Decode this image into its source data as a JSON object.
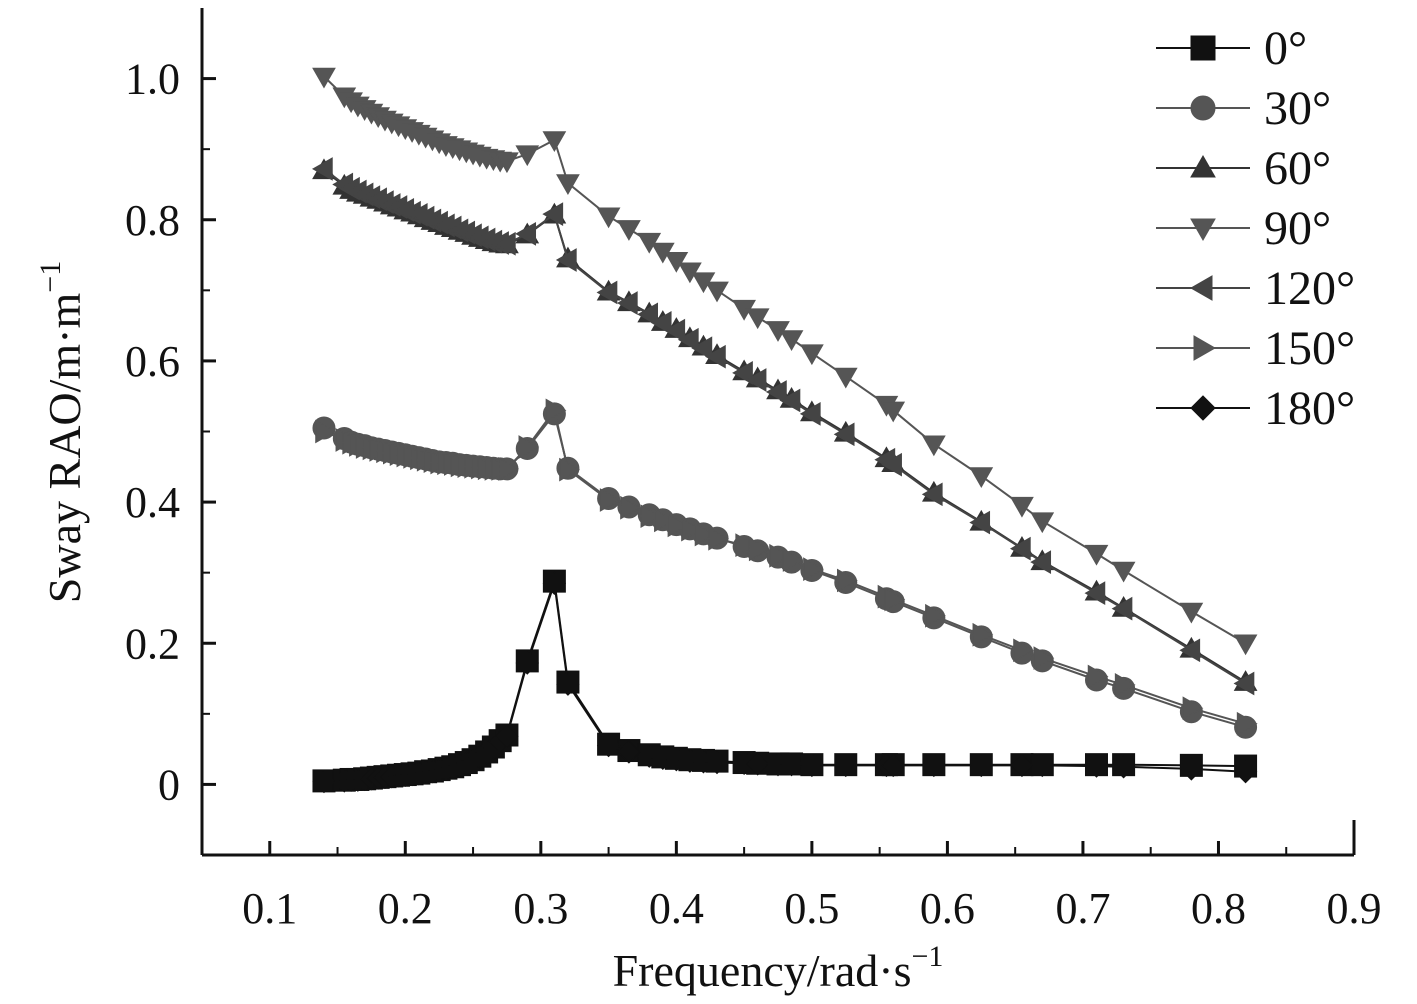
{
  "chart_data": {
    "type": "line",
    "title": "",
    "xlabel": "Frequency/rad·s",
    "xlabel_sup": "−1",
    "ylabel": "Sway RAO/m·m",
    "ylabel_sup": "−1",
    "xlim": [
      0.05,
      0.9
    ],
    "ylim": [
      -0.1,
      1.1
    ],
    "xticks": [
      0.1,
      0.2,
      0.3,
      0.4,
      0.5,
      0.6,
      0.7,
      0.8,
      0.9
    ],
    "xtick_labels": [
      "0.1",
      "0.2",
      "0.3",
      "0.4",
      "0.5",
      "0.6",
      "0.7",
      "0.8",
      "0.9"
    ],
    "yticks": [
      0,
      0.2,
      0.4,
      0.6,
      0.8,
      1.0
    ],
    "ytick_labels": [
      "0",
      "0.2",
      "0.4",
      "0.6",
      "0.8",
      "1.0"
    ],
    "legend_position": "top-right",
    "x": [
      0.14,
      0.155,
      0.16,
      0.165,
      0.17,
      0.175,
      0.18,
      0.185,
      0.19,
      0.195,
      0.2,
      0.205,
      0.21,
      0.215,
      0.22,
      0.225,
      0.23,
      0.235,
      0.24,
      0.245,
      0.25,
      0.255,
      0.26,
      0.265,
      0.27,
      0.275,
      0.29,
      0.31,
      0.32,
      0.35,
      0.365,
      0.38,
      0.39,
      0.4,
      0.41,
      0.42,
      0.43,
      0.45,
      0.46,
      0.475,
      0.485,
      0.5,
      0.525,
      0.555,
      0.56,
      0.59,
      0.625,
      0.655,
      0.67,
      0.71,
      0.73,
      0.78,
      0.82
    ],
    "series": [
      {
        "name": "0°",
        "marker": "square",
        "color": "#111111",
        "values": [
          0.005,
          0.006,
          0.007,
          0.007,
          0.008,
          0.009,
          0.01,
          0.011,
          0.012,
          0.013,
          0.014,
          0.015,
          0.016,
          0.018,
          0.019,
          0.021,
          0.023,
          0.025,
          0.028,
          0.031,
          0.035,
          0.04,
          0.046,
          0.053,
          0.062,
          0.07,
          0.175,
          0.288,
          0.145,
          0.057,
          0.048,
          0.042,
          0.039,
          0.037,
          0.035,
          0.034,
          0.033,
          0.031,
          0.03,
          0.029,
          0.029,
          0.028,
          0.028,
          0.028,
          0.028,
          0.028,
          0.028,
          0.028,
          0.028,
          0.028,
          0.028,
          0.027,
          0.026
        ]
      },
      {
        "name": "30°",
        "marker": "circle",
        "color": "#555555",
        "values": [
          0.505,
          0.49,
          0.485,
          0.482,
          0.48,
          0.477,
          0.475,
          0.473,
          0.471,
          0.469,
          0.467,
          0.465,
          0.463,
          0.461,
          0.459,
          0.457,
          0.456,
          0.455,
          0.453,
          0.452,
          0.451,
          0.45,
          0.449,
          0.448,
          0.447,
          0.447,
          0.476,
          0.525,
          0.448,
          0.405,
          0.393,
          0.382,
          0.375,
          0.368,
          0.362,
          0.355,
          0.349,
          0.337,
          0.331,
          0.322,
          0.315,
          0.303,
          0.286,
          0.263,
          0.259,
          0.236,
          0.209,
          0.186,
          0.175,
          0.148,
          0.136,
          0.103,
          0.081
        ]
      },
      {
        "name": "60°",
        "marker": "triangle-up",
        "color": "#333333",
        "values": [
          0.87,
          0.848,
          0.842,
          0.838,
          0.835,
          0.831,
          0.828,
          0.824,
          0.82,
          0.817,
          0.813,
          0.81,
          0.806,
          0.802,
          0.798,
          0.795,
          0.791,
          0.788,
          0.784,
          0.781,
          0.777,
          0.774,
          0.771,
          0.768,
          0.766,
          0.765,
          0.779,
          0.807,
          0.745,
          0.698,
          0.683,
          0.667,
          0.655,
          0.645,
          0.632,
          0.62,
          0.608,
          0.585,
          0.575,
          0.558,
          0.546,
          0.527,
          0.498,
          0.462,
          0.455,
          0.413,
          0.372,
          0.335,
          0.316,
          0.273,
          0.25,
          0.192,
          0.145
        ]
      },
      {
        "name": "90°",
        "marker": "triangle-down",
        "color": "#555555",
        "values": [
          1.003,
          0.975,
          0.968,
          0.962,
          0.957,
          0.952,
          0.947,
          0.942,
          0.938,
          0.934,
          0.93,
          0.926,
          0.922,
          0.918,
          0.914,
          0.91,
          0.906,
          0.903,
          0.9,
          0.897,
          0.894,
          0.891,
          0.888,
          0.886,
          0.884,
          0.883,
          0.893,
          0.913,
          0.852,
          0.805,
          0.787,
          0.769,
          0.755,
          0.742,
          0.727,
          0.713,
          0.7,
          0.674,
          0.662,
          0.644,
          0.631,
          0.611,
          0.578,
          0.538,
          0.53,
          0.482,
          0.437,
          0.395,
          0.373,
          0.327,
          0.303,
          0.245,
          0.2
        ]
      },
      {
        "name": "120°",
        "marker": "triangle-left",
        "color": "#444444",
        "values": [
          0.872,
          0.85,
          0.844,
          0.84,
          0.836,
          0.832,
          0.829,
          0.825,
          0.821,
          0.818,
          0.814,
          0.81,
          0.807,
          0.803,
          0.799,
          0.796,
          0.792,
          0.789,
          0.785,
          0.782,
          0.778,
          0.775,
          0.772,
          0.769,
          0.767,
          0.766,
          0.78,
          0.808,
          0.743,
          0.697,
          0.682,
          0.666,
          0.654,
          0.643,
          0.63,
          0.618,
          0.606,
          0.583,
          0.573,
          0.556,
          0.544,
          0.525,
          0.496,
          0.46,
          0.453,
          0.411,
          0.371,
          0.334,
          0.315,
          0.271,
          0.249,
          0.19,
          0.143
        ]
      },
      {
        "name": "150°",
        "marker": "triangle-right",
        "color": "#555555",
        "values": [
          0.5,
          0.488,
          0.484,
          0.481,
          0.478,
          0.476,
          0.474,
          0.472,
          0.47,
          0.468,
          0.466,
          0.464,
          0.462,
          0.46,
          0.458,
          0.456,
          0.455,
          0.454,
          0.452,
          0.451,
          0.45,
          0.449,
          0.448,
          0.447,
          0.447,
          0.447,
          0.478,
          0.53,
          0.446,
          0.403,
          0.392,
          0.38,
          0.374,
          0.367,
          0.361,
          0.354,
          0.348,
          0.339,
          0.333,
          0.324,
          0.318,
          0.305,
          0.289,
          0.266,
          0.262,
          0.239,
          0.212,
          0.19,
          0.179,
          0.153,
          0.141,
          0.108,
          0.086
        ]
      },
      {
        "name": "180°",
        "marker": "diamond",
        "color": "#111111",
        "values": [
          0.004,
          0.005,
          0.006,
          0.006,
          0.007,
          0.008,
          0.009,
          0.01,
          0.011,
          0.012,
          0.013,
          0.014,
          0.015,
          0.017,
          0.018,
          0.02,
          0.022,
          0.024,
          0.027,
          0.03,
          0.034,
          0.039,
          0.045,
          0.052,
          0.061,
          0.068,
          0.172,
          0.285,
          0.142,
          0.055,
          0.046,
          0.04,
          0.037,
          0.035,
          0.033,
          0.032,
          0.031,
          0.03,
          0.029,
          0.028,
          0.028,
          0.027,
          0.027,
          0.027,
          0.027,
          0.027,
          0.027,
          0.027,
          0.027,
          0.026,
          0.025,
          0.022,
          0.018
        ]
      }
    ]
  }
}
